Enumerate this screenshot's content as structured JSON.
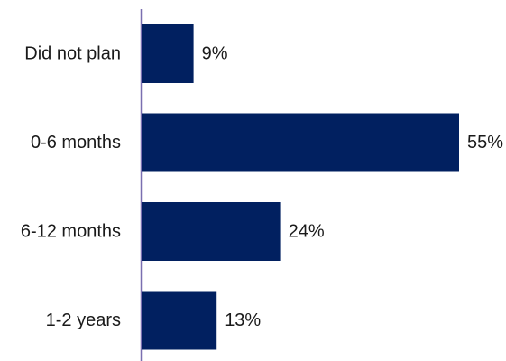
{
  "chart_data": {
    "type": "bar",
    "orientation": "horizontal",
    "categories": [
      "Did not plan",
      "0-6 months",
      "6-12 months",
      "1-2 years"
    ],
    "values": [
      9,
      55,
      24,
      13
    ],
    "value_labels": [
      "9%",
      "55%",
      "24%",
      "13%"
    ],
    "title": "",
    "xlabel": "",
    "ylabel": "",
    "xlim": [
      0,
      55
    ],
    "grid": false,
    "legend": "none",
    "colors": {
      "bar": "#012060",
      "axis": "#7a6fb0",
      "text": "#1a1a1a"
    }
  }
}
